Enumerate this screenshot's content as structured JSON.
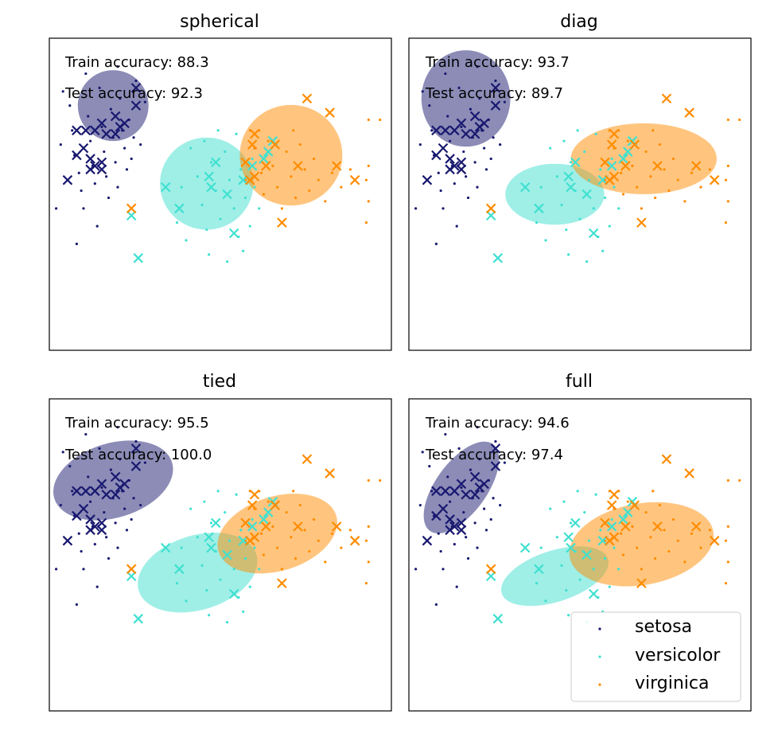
{
  "colors": {
    "setosa": "#191970",
    "versicolor": "#40e0d0",
    "virginica": "#ff8c00"
  },
  "legend": {
    "placement": "lower-right",
    "panel": 3,
    "entries": [
      "setosa",
      "versicolor",
      "virginica"
    ]
  },
  "points": {
    "train": {
      "setosa": [
        [
          -2.9,
          1.55
        ],
        [
          -2.75,
          1.35
        ],
        [
          -2.7,
          1.0
        ],
        [
          -2.65,
          0.65
        ],
        [
          -2.55,
          0.4
        ],
        [
          -2.5,
          0.15
        ],
        [
          -2.45,
          -0.1
        ],
        [
          -2.35,
          1.2
        ],
        [
          -2.3,
          0.85
        ],
        [
          -2.25,
          0.5
        ],
        [
          -2.2,
          0.25
        ],
        [
          -2.1,
          1.6
        ],
        [
          -2.05,
          1.05
        ],
        [
          -2.0,
          0.7
        ],
        [
          -1.95,
          0.35
        ],
        [
          -1.9,
          0.05
        ],
        [
          -1.85,
          1.3
        ],
        [
          -1.8,
          0.9
        ],
        [
          -1.75,
          0.55
        ],
        [
          -1.7,
          0.2
        ],
        [
          -1.65,
          1.45
        ],
        [
          -1.6,
          1.0
        ],
        [
          -1.55,
          0.75
        ],
        [
          -1.5,
          0.45
        ],
        [
          -1.45,
          1.15
        ],
        [
          -1.4,
          0.6
        ],
        [
          -1.35,
          0.9
        ],
        [
          -1.3,
          1.7
        ],
        [
          -1.2,
          0.8
        ],
        [
          -2.6,
          -0.6
        ],
        [
          -2.15,
          -0.35
        ],
        [
          -2.4,
          1.8
        ],
        [
          -1.7,
          1.9
        ],
        [
          -2.8,
          0.3
        ],
        [
          -3.05,
          -0.1
        ],
        [
          -1.1,
          1.4
        ],
        [
          -2.95,
          0.8
        ]
      ],
      "versicolor": [
        [
          -0.1,
          0.75
        ],
        [
          0.05,
          0.35
        ],
        [
          0.15,
          -0.05
        ],
        [
          0.25,
          -0.4
        ],
        [
          0.35,
          0.55
        ],
        [
          0.45,
          0.15
        ],
        [
          0.55,
          -0.25
        ],
        [
          0.65,
          0.7
        ],
        [
          0.75,
          0.3
        ],
        [
          0.85,
          -0.1
        ],
        [
          0.95,
          -0.5
        ],
        [
          1.0,
          0.45
        ],
        [
          1.1,
          0.05
        ],
        [
          1.2,
          -0.35
        ],
        [
          1.25,
          0.6
        ],
        [
          -0.3,
          0.2
        ],
        [
          -0.4,
          -0.3
        ],
        [
          0.3,
          -0.75
        ],
        [
          0.7,
          -0.85
        ],
        [
          1.05,
          -0.7
        ],
        [
          0.5,
          1.0
        ],
        [
          0.2,
          0.85
        ],
        [
          1.3,
          0.2
        ],
        [
          -0.2,
          -0.55
        ],
        [
          0.9,
          0.95
        ],
        [
          1.4,
          -0.1
        ]
      ],
      "virginica": [
        [
          1.2,
          1.0
        ],
        [
          1.3,
          0.75
        ],
        [
          1.45,
          0.4
        ],
        [
          1.5,
          0.1
        ],
        [
          1.6,
          0.85
        ],
        [
          1.7,
          0.5
        ],
        [
          1.8,
          0.2
        ],
        [
          1.9,
          -0.1
        ],
        [
          2.0,
          0.7
        ],
        [
          2.1,
          0.35
        ],
        [
          2.2,
          0.05
        ],
        [
          2.3,
          0.8
        ],
        [
          2.4,
          0.45
        ],
        [
          2.5,
          0.15
        ],
        [
          2.6,
          0.6
        ],
        [
          2.7,
          0.3
        ],
        [
          2.85,
          0.0
        ],
        [
          3.0,
          0.4
        ],
        [
          3.2,
          0.2
        ],
        [
          1.4,
          1.0
        ],
        [
          2.15,
          1.0
        ],
        [
          3.8,
          1.15
        ],
        [
          4.05,
          1.15
        ],
        [
          3.8,
          0.5
        ],
        [
          3.75,
          0.3
        ],
        [
          3.8,
          0.0
        ],
        [
          3.75,
          -0.3
        ],
        [
          3.4,
          0.45
        ],
        [
          1.1,
          0.3
        ]
      ]
    },
    "test": {
      "setosa": [
        [
          -1.3,
          1.6
        ],
        [
          -1.3,
          1.35
        ],
        [
          -1.75,
          1.2
        ],
        [
          -1.65,
          1.05
        ],
        [
          -1.55,
          1.1
        ],
        [
          -2.2,
          1.0
        ],
        [
          -2.4,
          1.0
        ],
        [
          -2.6,
          1.0
        ],
        [
          -2.45,
          0.75
        ],
        [
          -2.6,
          0.65
        ],
        [
          -2.05,
          1.1
        ],
        [
          -1.95,
          0.95
        ],
        [
          -1.75,
          0.95
        ],
        [
          -2.3,
          0.6
        ],
        [
          -2.2,
          0.5
        ],
        [
          -2.3,
          0.45
        ],
        [
          -2.05,
          0.55
        ],
        [
          -2.05,
          0.45
        ],
        [
          -2.8,
          0.3
        ]
      ],
      "versicolor": [
        [
          0.45,
          0.55
        ],
        [
          0.3,
          0.35
        ],
        [
          0.35,
          0.2
        ],
        [
          0.7,
          0.1
        ],
        [
          -0.65,
          0.2
        ],
        [
          -0.35,
          -0.1
        ],
        [
          0.85,
          -0.45
        ],
        [
          -1.4,
          -0.2
        ],
        [
          -1.25,
          -0.8
        ],
        [
          1.7,
          0.85
        ],
        [
          1.6,
          0.7
        ],
        [
          1.25,
          0.5
        ],
        [
          1.05,
          0.3
        ],
        [
          1.5,
          0.6
        ]
      ],
      "virginica": [
        [
          1.3,
          0.95
        ],
        [
          1.25,
          0.8
        ],
        [
          1.75,
          0.8
        ],
        [
          1.55,
          0.5
        ],
        [
          1.3,
          0.35
        ],
        [
          2.25,
          0.5
        ],
        [
          3.1,
          0.5
        ],
        [
          3.5,
          0.3
        ],
        [
          2.95,
          1.25
        ],
        [
          2.45,
          1.45
        ],
        [
          1.1,
          0.55
        ],
        [
          1.2,
          0.3
        ],
        [
          1.9,
          -0.3
        ],
        [
          -1.4,
          -0.1
        ]
      ]
    }
  },
  "chart_data": [
    {
      "type": "scatter",
      "title": "spherical",
      "xlim": [
        -3.2,
        4.3
      ],
      "ylim": [
        -2.1,
        2.3
      ],
      "annotations": [
        "Train accuracy: 88.3",
        "Test accuracy: 92.3"
      ],
      "series": [
        {
          "name": "setosa",
          "marker": "dot (train), x (test)"
        },
        {
          "name": "versicolor",
          "marker": "dot (train), x (test)"
        },
        {
          "name": "virginica",
          "marker": "dot (train), x (test)"
        }
      ],
      "ellipses": [
        {
          "class": "setosa",
          "center": [
            -1.8,
            1.35
          ],
          "width": 1.55,
          "height": 1.0,
          "angle": 0
        },
        {
          "class": "versicolor",
          "center": [
            0.25,
            0.25
          ],
          "width": 2.05,
          "height": 1.3,
          "angle": 0
        },
        {
          "class": "virginica",
          "center": [
            2.1,
            0.65
          ],
          "width": 2.25,
          "height": 1.42,
          "angle": 0
        }
      ]
    },
    {
      "type": "scatter",
      "title": "diag",
      "xlim": [
        -3.2,
        4.3
      ],
      "ylim": [
        -2.1,
        2.3
      ],
      "annotations": [
        "Train accuracy: 93.7",
        "Test accuracy: 89.7"
      ],
      "series": [
        {
          "name": "setosa",
          "marker": "dot (train), x (test)"
        },
        {
          "name": "versicolor",
          "marker": "dot (train), x (test)"
        },
        {
          "name": "virginica",
          "marker": "dot (train), x (test)"
        }
      ],
      "ellipses": [
        {
          "class": "setosa",
          "center": [
            -1.95,
            1.45
          ],
          "width": 1.95,
          "height": 1.36,
          "angle": 0
        },
        {
          "class": "versicolor",
          "center": [
            0.0,
            0.1
          ],
          "width": 2.17,
          "height": 0.86,
          "angle": 0
        },
        {
          "class": "virginica",
          "center": [
            1.95,
            0.6
          ],
          "width": 3.2,
          "height": 1.0,
          "angle": 0
        }
      ]
    },
    {
      "type": "scatter",
      "title": "tied",
      "xlim": [
        -3.2,
        4.3
      ],
      "ylim": [
        -2.1,
        2.3
      ],
      "annotations": [
        "Train accuracy: 95.5",
        "Test accuracy: 100.0"
      ],
      "series": [
        {
          "name": "setosa",
          "marker": "dot (train), x (test)"
        },
        {
          "name": "versicolor",
          "marker": "dot (train), x (test)"
        },
        {
          "name": "virginica",
          "marker": "dot (train), x (test)"
        }
      ],
      "ellipses": [
        {
          "class": "setosa",
          "center": [
            -1.8,
            1.15
          ],
          "width": 2.7,
          "height": 1.05,
          "angle": 17
        },
        {
          "class": "versicolor",
          "center": [
            0.05,
            -0.15
          ],
          "width": 2.7,
          "height": 1.05,
          "angle": 17
        },
        {
          "class": "virginica",
          "center": [
            1.8,
            0.4
          ],
          "width": 2.7,
          "height": 1.05,
          "angle": 17
        }
      ]
    },
    {
      "type": "scatter",
      "title": "full",
      "xlim": [
        -3.2,
        4.3
      ],
      "ylim": [
        -2.1,
        2.3
      ],
      "annotations": [
        "Train accuracy: 94.6",
        "Test accuracy: 97.4"
      ],
      "series": [
        {
          "name": "setosa",
          "marker": "dot (train), x (test)"
        },
        {
          "name": "versicolor",
          "marker": "dot (train), x (test)"
        },
        {
          "name": "virginica",
          "marker": "dot (train), x (test)"
        }
      ],
      "ellipses": [
        {
          "class": "setosa",
          "center": [
            -2.05,
            1.05
          ],
          "width": 2.35,
          "height": 0.72,
          "angle": 54
        },
        {
          "class": "versicolor",
          "center": [
            0.0,
            -0.2
          ],
          "width": 2.45,
          "height": 0.72,
          "angle": 18
        },
        {
          "class": "virginica",
          "center": [
            1.9,
            0.25
          ],
          "width": 3.2,
          "height": 1.15,
          "angle": 10
        }
      ]
    }
  ]
}
